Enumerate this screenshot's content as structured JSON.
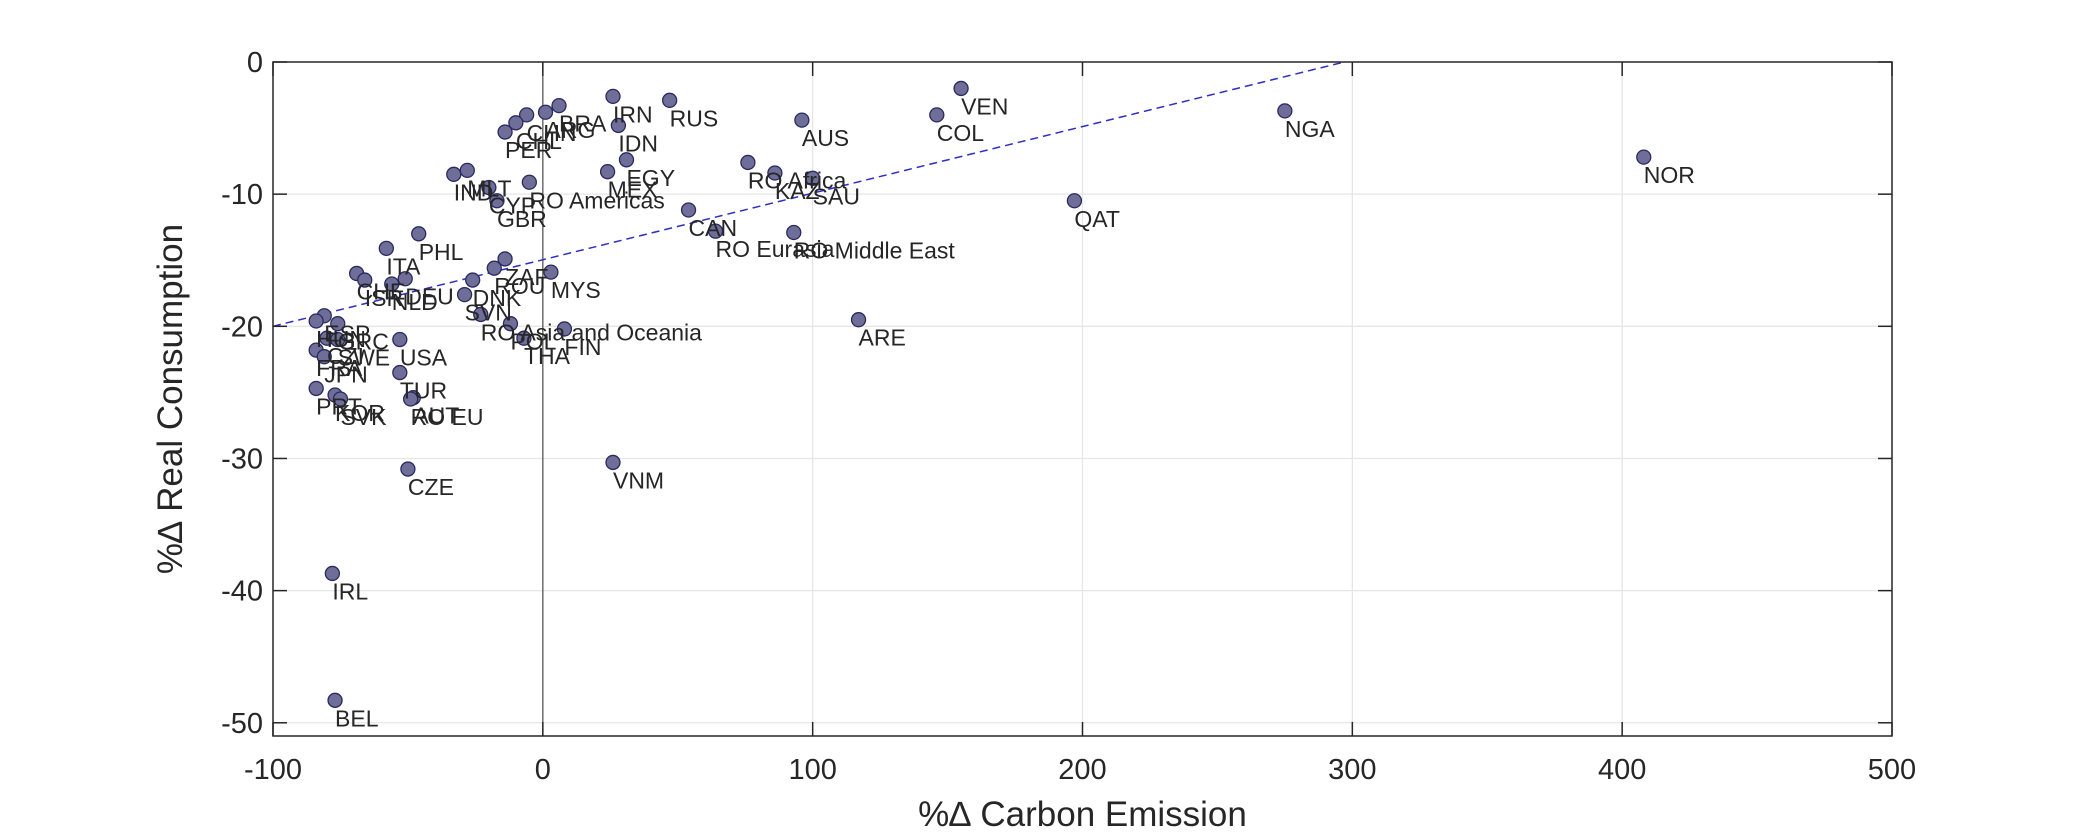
{
  "chart_data": {
    "type": "scatter",
    "xlabel": "%∆ Carbon Emission",
    "ylabel": "%∆ Real Consumption",
    "xlim": [
      -100,
      500
    ],
    "ylim": [
      -51,
      0
    ],
    "xticks": [
      -100,
      0,
      100,
      200,
      300,
      400,
      500
    ],
    "yticks": [
      -50,
      -40,
      -30,
      -20,
      -10,
      0
    ],
    "grid": true,
    "reference_lines": {
      "x_zero": true
    },
    "trend_line": {
      "x": [
        -100,
        297
      ],
      "y": [
        -20,
        0
      ],
      "style": "dashed"
    },
    "points": [
      {
        "label": "VEN",
        "x": 155,
        "y": -2.0
      },
      {
        "label": "COL",
        "x": 146,
        "y": -4.0
      },
      {
        "label": "NGA",
        "x": 275,
        "y": -3.7
      },
      {
        "label": "NOR",
        "x": 408,
        "y": -7.2
      },
      {
        "label": "QAT",
        "x": 197,
        "y": -10.5
      },
      {
        "label": "ARE",
        "x": 117,
        "y": -19.5
      },
      {
        "label": "IRN",
        "x": 26,
        "y": -2.6
      },
      {
        "label": "RUS",
        "x": 47,
        "y": -2.9
      },
      {
        "label": "IDN",
        "x": 28,
        "y": -4.8
      },
      {
        "label": "BRA",
        "x": 6,
        "y": -3.3
      },
      {
        "label": "ARG",
        "x": 1,
        "y": -3.8
      },
      {
        "label": "CHN",
        "x": -6,
        "y": -4.0
      },
      {
        "label": "PER",
        "x": -14,
        "y": -5.3
      },
      {
        "label": "CHL",
        "x": -10,
        "y": -4.6
      },
      {
        "label": "AUS",
        "x": 96,
        "y": -4.4
      },
      {
        "label": "EGY",
        "x": 31,
        "y": -7.4
      },
      {
        "label": "MEX",
        "x": 24,
        "y": -8.3
      },
      {
        "label": "RO Africa",
        "x": 76,
        "y": -7.6
      },
      {
        "label": "KAZ",
        "x": 86,
        "y": -8.4
      },
      {
        "label": "SAU",
        "x": 100,
        "y": -8.8
      },
      {
        "label": "RO Americas",
        "x": -5,
        "y": -9.1
      },
      {
        "label": "IND",
        "x": -33,
        "y": -8.5
      },
      {
        "label": "MLT",
        "x": -28,
        "y": -8.2
      },
      {
        "label": "CYP",
        "x": -20,
        "y": -9.5
      },
      {
        "label": "GBR",
        "x": -17,
        "y": -10.5
      },
      {
        "label": "CAN",
        "x": 54,
        "y": -11.2
      },
      {
        "label": "RO Eurasia",
        "x": 64,
        "y": -12.8
      },
      {
        "label": "RO Middle East",
        "x": 93,
        "y": -12.9
      },
      {
        "label": "PHL",
        "x": -46,
        "y": -13.0
      },
      {
        "label": "ITA",
        "x": -58,
        "y": -14.1
      },
      {
        "label": "ZAF",
        "x": -14,
        "y": -14.9
      },
      {
        "label": "ROU",
        "x": -18,
        "y": -15.6
      },
      {
        "label": "MYS",
        "x": 3,
        "y": -15.9
      },
      {
        "label": "CHE",
        "x": -69,
        "y": -16.0
      },
      {
        "label": "ISR",
        "x": -66,
        "y": -16.5
      },
      {
        "label": "DEU",
        "x": -51,
        "y": -16.4
      },
      {
        "label": "NLD",
        "x": -56,
        "y": -16.8
      },
      {
        "label": "DNK",
        "x": -26,
        "y": -16.5
      },
      {
        "label": "SVN",
        "x": -29,
        "y": -17.6
      },
      {
        "label": "RO Asia and Oceania",
        "x": -23,
        "y": -19.1
      },
      {
        "label": "POL",
        "x": -12,
        "y": -19.8
      },
      {
        "label": "THA",
        "x": -7,
        "y": -20.9
      },
      {
        "label": "FIN",
        "x": 8,
        "y": -20.2
      },
      {
        "label": "ESP",
        "x": -81,
        "y": -19.2
      },
      {
        "label": "HUN",
        "x": -84,
        "y": -19.6
      },
      {
        "label": "GRC",
        "x": -76,
        "y": -19.8
      },
      {
        "label": "CZI",
        "x": -80,
        "y": -20.9
      },
      {
        "label": "SWE",
        "x": -76,
        "y": -21.0
      },
      {
        "label": "USA",
        "x": -53,
        "y": -21.0
      },
      {
        "label": "FRA",
        "x": -84,
        "y": -21.8
      },
      {
        "label": "JPN",
        "x": -81,
        "y": -22.3
      },
      {
        "label": "TUR",
        "x": -53,
        "y": -23.5
      },
      {
        "label": "PRT",
        "x": -84,
        "y": -24.7
      },
      {
        "label": "KOR",
        "x": -77,
        "y": -25.2
      },
      {
        "label": "SVK",
        "x": -75,
        "y": -25.5
      },
      {
        "label": "AUT",
        "x": -48,
        "y": -25.4
      },
      {
        "label": "RO EU",
        "x": -49,
        "y": -25.5
      },
      {
        "label": "CZE",
        "x": -50,
        "y": -30.8
      },
      {
        "label": "VNM",
        "x": 26,
        "y": -30.3
      },
      {
        "label": "IRL",
        "x": -78,
        "y": -38.7
      },
      {
        "label": "BEL",
        "x": -77,
        "y": -48.3
      }
    ]
  }
}
